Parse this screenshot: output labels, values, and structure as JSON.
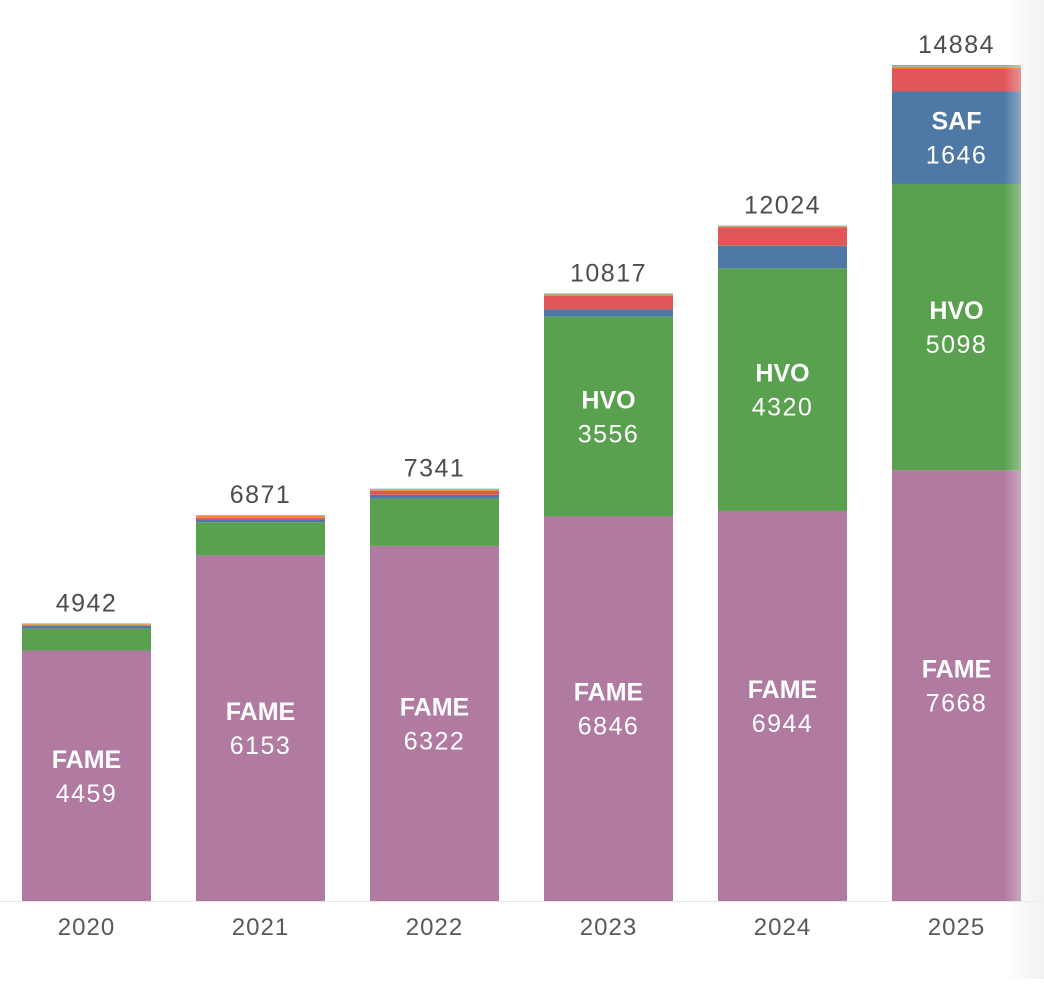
{
  "colors": {
    "FAME": "#b07aa1",
    "HVO": "#59a14f",
    "SAF": "#4e79a7",
    "red": "#e15759",
    "orange": "#f28e2b",
    "teal": "#76b7b2",
    "axis": "#e6e6e6"
  },
  "chart_data": {
    "type": "bar",
    "stacked": true,
    "categories": [
      "2020",
      "2021",
      "2022",
      "2023",
      "2024",
      "2025"
    ],
    "totals": [
      "4942",
      "6871",
      "7341",
      "10817",
      "12024",
      "14884"
    ],
    "total_values": [
      4942,
      6871,
      7341,
      10817,
      12024,
      14884
    ],
    "series": [
      {
        "key": "FAME",
        "name": "FAME",
        "color_key": "FAME",
        "values": [
          4459,
          6153,
          6322,
          6846,
          6944,
          7668
        ],
        "value_labels": [
          "4459",
          "6153",
          "6322",
          "6846",
          "6944",
          "7668"
        ],
        "labeled": [
          true,
          true,
          true,
          true,
          true,
          true
        ]
      },
      {
        "key": "HVO",
        "name": "HVO",
        "color_key": "HVO",
        "values": [
          390,
          590,
          840,
          3556,
          4320,
          5098
        ],
        "value_labels": [
          "",
          "",
          "",
          "3556",
          "4320",
          "5098"
        ],
        "labeled": [
          false,
          false,
          false,
          true,
          true,
          true
        ]
      },
      {
        "key": "SAF",
        "color_key": "SAF",
        "values": [
          50,
          50,
          70,
          130,
          400,
          1646
        ],
        "value_labels": [
          "",
          "",
          "",
          "",
          "",
          "1646"
        ],
        "labeled": [
          false,
          false,
          false,
          false,
          false,
          true
        ]
      },
      {
        "key": "red",
        "color_key": "red",
        "values": [
          10,
          25,
          70,
          245,
          330,
          410
        ],
        "value_labels": [
          "",
          "",
          "",
          "",
          "",
          ""
        ],
        "labeled": [
          false,
          false,
          false,
          false,
          false,
          false
        ]
      },
      {
        "key": "orange",
        "color_key": "orange",
        "values": [
          18,
          38,
          20,
          20,
          15,
          32
        ],
        "value_labels": [
          "",
          "",
          "",
          "",
          "",
          ""
        ],
        "labeled": [
          false,
          false,
          false,
          false,
          false,
          false
        ]
      },
      {
        "key": "teal",
        "color_key": "teal",
        "values": [
          15,
          15,
          19,
          20,
          15,
          30
        ],
        "value_labels": [
          "",
          "",
          "",
          "",
          "",
          ""
        ],
        "labeled": [
          false,
          false,
          false,
          false,
          false,
          false
        ]
      }
    ],
    "series_display_names": {
      "SAF": "SAF"
    },
    "ylim": [
      0,
      14884
    ],
    "grid": false,
    "legend": "none",
    "title": "",
    "xlabel": "",
    "ylabel": ""
  }
}
